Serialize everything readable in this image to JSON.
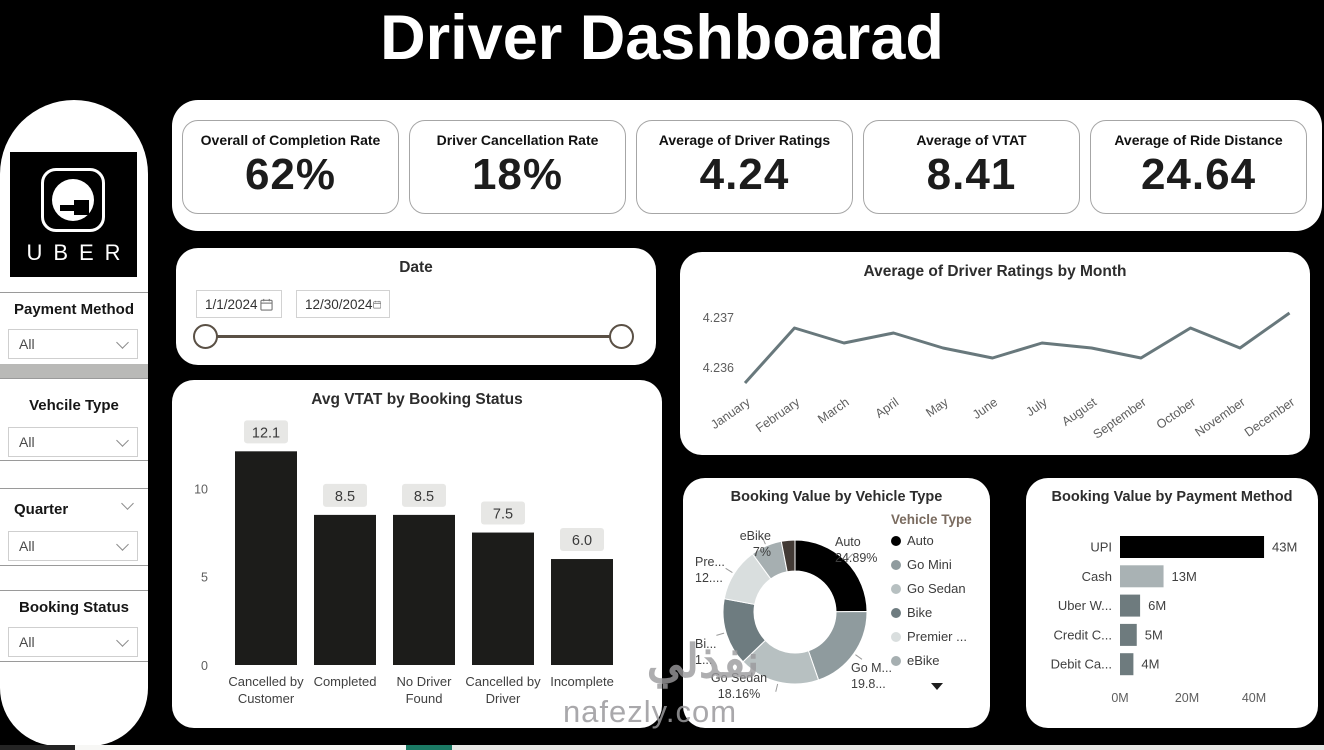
{
  "title": "Driver Dashboarad",
  "sidebar": {
    "logo_text": "UBER",
    "filters": [
      {
        "label": "Payment Method",
        "value": "All"
      },
      {
        "label": "Vehcile Type",
        "value": "All"
      },
      {
        "label": "Quarter",
        "value": "All"
      },
      {
        "label": "Booking Status",
        "value": "All"
      }
    ]
  },
  "kpis": [
    {
      "label": "Overall of Completion Rate",
      "value": "62%"
    },
    {
      "label": "Driver Cancellation Rate",
      "value": "18%"
    },
    {
      "label": "Average of Driver Ratings",
      "value": "4.24"
    },
    {
      "label": "Average of VTAT",
      "value": "8.41"
    },
    {
      "label": "Average of Ride Distance",
      "value": "24.64"
    }
  ],
  "date_slicer": {
    "title": "Date",
    "start": "1/1/2024",
    "end": "12/30/2024"
  },
  "watermark": {
    "text": "nafezly.com",
    "arabic": "نفذلي"
  },
  "chart_data": [
    {
      "type": "line",
      "title": "Average of Driver Ratings by Month",
      "x": [
        "January",
        "February",
        "March",
        "April",
        "May",
        "June",
        "July",
        "August",
        "September",
        "October",
        "November",
        "December"
      ],
      "values": [
        4.2357,
        4.2368,
        4.2365,
        4.2367,
        4.2364,
        4.2362,
        4.2365,
        4.2364,
        4.2362,
        4.2368,
        4.2364,
        4.2371
      ],
      "ytick_labels": [
        "4.237",
        "4.236"
      ],
      "ytick_values": [
        4.237,
        4.236
      ],
      "ylim": [
        4.2355,
        4.2373
      ],
      "line_color": "#68787c",
      "grid": false,
      "legend_position": "none"
    },
    {
      "type": "bar",
      "title": "Avg VTAT by Booking Status",
      "categories": [
        "Cancelled by Customer",
        "Completed",
        "No Driver Found",
        "Cancelled by Driver",
        "Incomplete"
      ],
      "label_lines": [
        [
          "Cancelled by",
          "Customer"
        ],
        [
          "Completed"
        ],
        [
          "No Driver",
          "Found"
        ],
        [
          "Cancelled by",
          "Driver"
        ],
        [
          "Incomplete"
        ]
      ],
      "values": [
        12.1,
        8.5,
        8.5,
        7.5,
        6.0
      ],
      "data_labels": [
        "12.1",
        "8.5",
        "8.5",
        "7.5",
        "6.0"
      ],
      "yticks": [
        0,
        5,
        10
      ],
      "ylim": [
        0,
        13.5
      ],
      "bar_color": "#1c1c1a",
      "xlabel": "",
      "ylabel": ""
    },
    {
      "type": "pie",
      "title": "Booking Value by Vehicle Type",
      "donut": true,
      "slices": [
        {
          "name": "Auto",
          "pct": 24.89,
          "color": "#000000",
          "callout_name": "Auto",
          "callout_value": "24.89%"
        },
        {
          "name": "Go Mini",
          "pct": 19.8,
          "color": "#8f9b9e",
          "callout_name": "Go M...",
          "callout_value": "19.8..."
        },
        {
          "name": "Go Sedan",
          "pct": 18.16,
          "color": "#b7c0c1",
          "callout_name": "Go Sedan",
          "callout_value": "18.16%"
        },
        {
          "name": "Bike",
          "pct": 15.1,
          "color": "#6e7c80",
          "callout_name": "Bi...",
          "callout_value": "1..."
        },
        {
          "name": "Premier",
          "pct": 12.0,
          "color": "#d9dede",
          "callout_name": "Pre...",
          "callout_value": "12...."
        },
        {
          "name": "eBike",
          "pct": 7.0,
          "color": "#a6afb1",
          "callout_name": "eBike",
          "callout_value": "7%"
        },
        {
          "name": "Other",
          "pct": 3.05,
          "color": "#423a35",
          "callout_name": "",
          "callout_value": ""
        }
      ],
      "legend": {
        "title": "Vehicle Type",
        "items": [
          {
            "label": "Auto",
            "color": "#000000"
          },
          {
            "label": "Go Mini",
            "color": "#8f9b9e"
          },
          {
            "label": "Go Sedan",
            "color": "#b7c0c1"
          },
          {
            "label": "Bike",
            "color": "#6e7c80"
          },
          {
            "label": "Premier ...",
            "color": "#d9dede"
          },
          {
            "label": "eBike",
            "color": "#a6afb1"
          }
        ]
      }
    },
    {
      "type": "bar",
      "orientation": "horizontal",
      "title": "Booking Value by Payment Method",
      "categories": [
        "UPI",
        "Cash",
        "Uber W...",
        "Credit C...",
        "Debit Ca..."
      ],
      "values": [
        43,
        13,
        6,
        5,
        4
      ],
      "data_labels": [
        "43M",
        "13M",
        "6M",
        "5M",
        "4M"
      ],
      "colors": [
        "#000000",
        "#a9b2b4",
        "#6e7b7e",
        "#6e7b7e",
        "#6e7b7e"
      ],
      "xticks": [
        "0M",
        "20M",
        "40M"
      ],
      "xtick_values": [
        0,
        20,
        40
      ],
      "xlim": [
        0,
        57
      ]
    }
  ]
}
